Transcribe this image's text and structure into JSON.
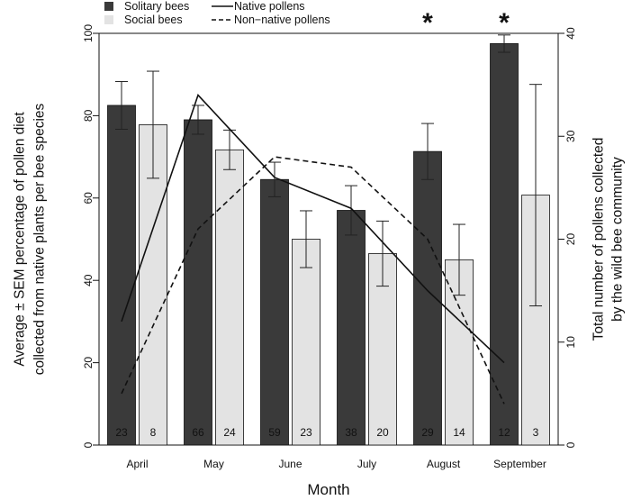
{
  "chart_data": {
    "type": "bar",
    "title": "",
    "xlabel": "Month",
    "ylabel_lines": [
      "Average ± SEM percentage of pollen diet",
      "collected from native plants per bee species"
    ],
    "y2label_lines": [
      "Total number of pollens collected",
      "by the wild bee community"
    ],
    "categories": [
      "April",
      "May",
      "June",
      "July",
      "August",
      "September"
    ],
    "ylim": [
      0,
      100
    ],
    "yticks": [
      0,
      20,
      40,
      60,
      80,
      100
    ],
    "y2lim": [
      0,
      40
    ],
    "y2ticks": [
      0,
      10,
      20,
      30,
      40
    ],
    "colors": {
      "solitary": "#3a3a3a",
      "social": "#e3e3e3"
    },
    "series": [
      {
        "name": "Solitary bees",
        "values": [
          82.5,
          79,
          64.5,
          57,
          71.3,
          97.5
        ],
        "sem": [
          5.8,
          3.5,
          4.2,
          6,
          6.8,
          2.1
        ],
        "n": [
          "23",
          "66",
          "59",
          "38",
          "29",
          "12"
        ]
      },
      {
        "name": "Social bees",
        "values": [
          77.8,
          71.7,
          50,
          46.5,
          45,
          60.7
        ],
        "sem": [
          13,
          4.8,
          6.9,
          7.9,
          8.6,
          26.9
        ],
        "n": [
          "8",
          "24",
          "23",
          "20",
          "14",
          "3"
        ]
      }
    ],
    "lines": [
      {
        "name": "Native pollens",
        "style": "solid",
        "values": [
          12,
          34,
          26,
          23,
          15,
          8
        ]
      },
      {
        "name": "Non-native pollens",
        "style": "dashed",
        "values": [
          5,
          21,
          28,
          27,
          20,
          4
        ]
      }
    ],
    "significance": [
      "",
      "",
      "",
      "",
      "*",
      "*"
    ],
    "legend": [
      {
        "label": "Solitary bees",
        "kind": "box-dark"
      },
      {
        "label": "Social bees",
        "kind": "box-light"
      },
      {
        "label": "Native pollens",
        "kind": "line-solid"
      },
      {
        "label": "Non−native pollens",
        "kind": "line-dashed"
      }
    ],
    "legend_position": "top"
  }
}
